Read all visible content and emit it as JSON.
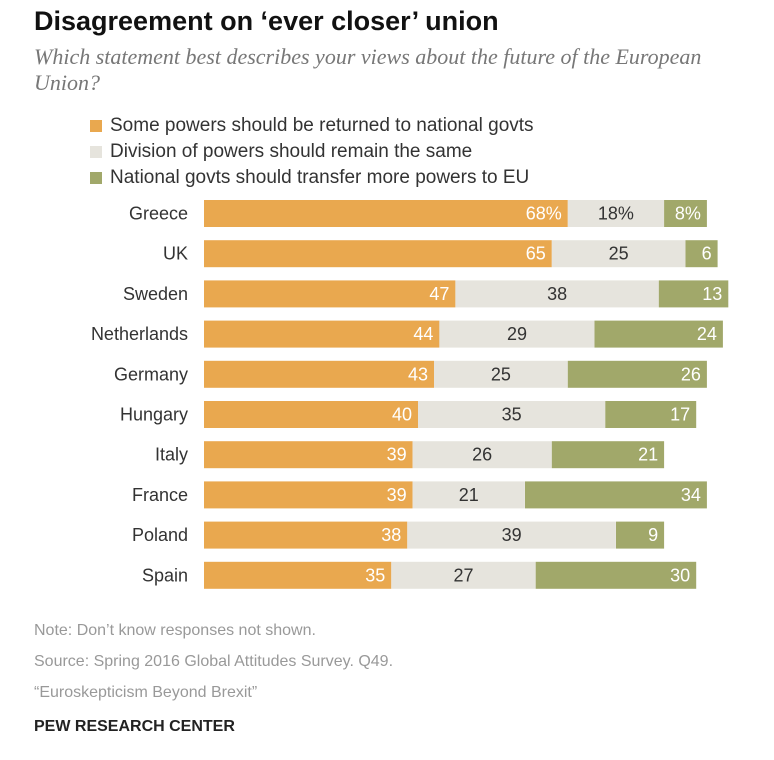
{
  "header": {
    "title": "Disagreement on ‘ever closer’ union",
    "subtitle": "Which statement best describes your views about the future of the European Union?"
  },
  "colors": {
    "returned": "#e9a84f",
    "same": "#e6e4dd",
    "transfer": "#a1a86a",
    "label_light": "#ffffff",
    "label_dark": "#333333"
  },
  "chart_data": {
    "type": "bar",
    "orientation": "horizontal",
    "stacked": true,
    "categories": [
      "Greece",
      "UK",
      "Sweden",
      "Netherlands",
      "Germany",
      "Hungary",
      "Italy",
      "France",
      "Poland",
      "Spain"
    ],
    "series": [
      {
        "name": "Some powers should be returned to national govts",
        "values": [
          68,
          65,
          47,
          44,
          43,
          40,
          39,
          39,
          38,
          35
        ]
      },
      {
        "name": "Division of powers should remain the same",
        "values": [
          18,
          25,
          38,
          29,
          25,
          35,
          26,
          21,
          39,
          27
        ]
      },
      {
        "name": "National govts should transfer more powers to EU",
        "values": [
          8,
          6,
          13,
          24,
          26,
          17,
          21,
          34,
          9,
          30
        ]
      }
    ],
    "value_labels": [
      [
        "68%",
        "18%",
        "8%"
      ],
      [
        "65",
        "25",
        "6"
      ],
      [
        "47",
        "38",
        "13"
      ],
      [
        "44",
        "29",
        "24"
      ],
      [
        "43",
        "25",
        "26"
      ],
      [
        "40",
        "35",
        "17"
      ],
      [
        "39",
        "26",
        "21"
      ],
      [
        "39",
        "21",
        "34"
      ],
      [
        "38",
        "39",
        "9"
      ],
      [
        "35",
        "27",
        "30"
      ]
    ],
    "xlim": [
      0,
      100
    ],
    "grid": false,
    "legend_position": "top"
  },
  "notes": [
    "Note: Don’t know responses not shown.",
    "Source: Spring 2016 Global Attitudes Survey. Q49.",
    "“Euroskepticism Beyond Brexit”"
  ],
  "footer": "PEW RESEARCH CENTER"
}
